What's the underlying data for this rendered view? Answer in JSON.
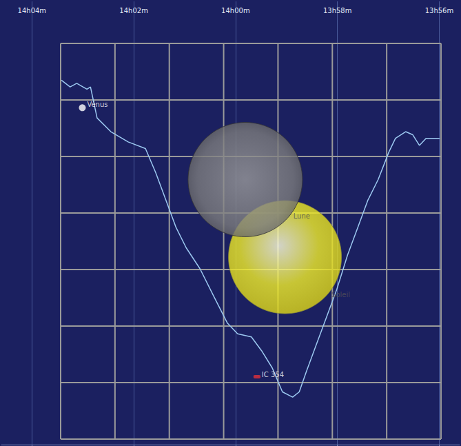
{
  "chart_data": {
    "type": "line",
    "xlim": [
      835.6,
      844.6
    ],
    "xticks": [
      {
        "value": 836,
        "label": "13h56m"
      },
      {
        "value": 838,
        "label": "13h58m"
      },
      {
        "value": 840,
        "label": "14h00m"
      },
      {
        "value": 842,
        "label": "14h02m"
      },
      {
        "value": 844,
        "label": "14h04m"
      }
    ],
    "ylim": [
      0,
      100
    ],
    "tick_labels": "x",
    "grid": true,
    "color": "#9cc8f0",
    "x": [
      843.42,
      843.25,
      843.12,
      842.92,
      842.85,
      842.72,
      842.45,
      842.11,
      841.77,
      841.57,
      841.37,
      841.17,
      840.97,
      840.7,
      840.43,
      840.16,
      839.96,
      839.69,
      839.49,
      839.28,
      839.08,
      838.88,
      838.75,
      838.61,
      838.41,
      838.21,
      838.01,
      837.8,
      837.6,
      837.4,
      837.2,
      836.99,
      836.86,
      836.66,
      836.52,
      836.39,
      836.26,
      835.99
    ],
    "values": [
      82.2,
      80.7,
      81.5,
      80.2,
      80.7,
      73.7,
      70.6,
      68.3,
      66.8,
      61.4,
      55.2,
      49.0,
      44.4,
      39.7,
      33.5,
      27.4,
      25.0,
      24.3,
      21.2,
      17.3,
      11.9,
      10.7,
      11.9,
      16.5,
      22.7,
      28.9,
      35.1,
      42.8,
      49.0,
      55.2,
      59.8,
      66.0,
      69.1,
      70.6,
      69.9,
      67.5,
      69.1,
      69.1
    ],
    "objects": [
      {
        "x": 839.03,
        "y": 42.3,
        "color": "#f2ee2a",
        "marker": "sun"
      },
      {
        "x": 839.81,
        "y": 59.8,
        "color": "#7c7c7c",
        "marker": "moon"
      },
      {
        "x": 843.01,
        "y": 76.0,
        "color": "#ffffff",
        "marker": "circle"
      },
      {
        "x": 839.58,
        "y": 15.3,
        "color": "#e0303a",
        "marker": "ellipse"
      }
    ],
    "annotations": [
      {
        "text": "Vénus",
        "x": 842.93,
        "y": 76.8,
        "color": "#ffffff"
      },
      {
        "text": "Lune",
        "x": 838.88,
        "y": 51.5,
        "color": "#555555"
      },
      {
        "text": "Soleil",
        "x": 838.13,
        "y": 33.8,
        "color": "#555555"
      },
      {
        "text": "IC 354",
        "x": 839.5,
        "y": 15.8,
        "color": "#ffffff"
      }
    ]
  }
}
